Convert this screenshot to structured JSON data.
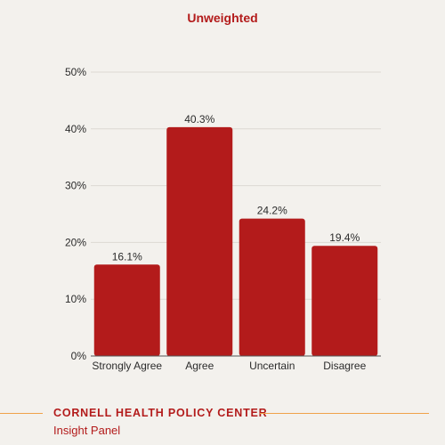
{
  "chart_data": {
    "type": "bar",
    "title": "Unweighted",
    "categories": [
      "Strongly Agree",
      "Agree",
      "Uncertain",
      "Disagree"
    ],
    "values": [
      16.1,
      40.3,
      24.2,
      19.4
    ],
    "value_labels": [
      "16.1%",
      "40.3%",
      "24.2%",
      "19.4%"
    ],
    "y_ticks": [
      "0%",
      "10%",
      "20%",
      "30%",
      "40%",
      "50%"
    ],
    "ylim": [
      0,
      50
    ],
    "grid": true,
    "bar_color": "#b31b1b"
  },
  "footer": {
    "org": "CORNELL HEALTH POLICY CENTER",
    "panel": "Insight Panel",
    "line_color": "#f0a24a"
  }
}
